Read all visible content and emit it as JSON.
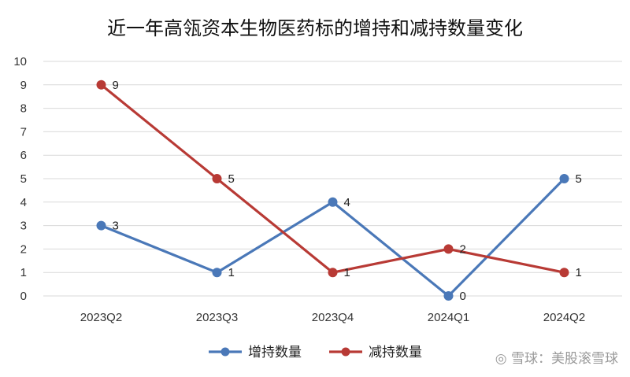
{
  "chart_data": {
    "type": "line",
    "title": "近一年高瓴资本生物医药标的增持和减持数量变化",
    "categories": [
      "2023Q2",
      "2023Q3",
      "2023Q4",
      "2024Q1",
      "2024Q2"
    ],
    "series": [
      {
        "name": "增持数量",
        "values": [
          3,
          1,
          4,
          0,
          5
        ],
        "color": "#4a78b8"
      },
      {
        "name": "减持数量",
        "values": [
          9,
          5,
          1,
          2,
          1
        ],
        "color": "#b83a35"
      }
    ],
    "ylim": [
      0,
      10
    ],
    "yticks": [
      0,
      1,
      2,
      3,
      4,
      5,
      6,
      7,
      8,
      9,
      10
    ],
    "grid": true,
    "legend_position": "bottom",
    "xlabel": "",
    "ylabel": ""
  },
  "watermark": "◎ 雪球：美股滚雪球"
}
